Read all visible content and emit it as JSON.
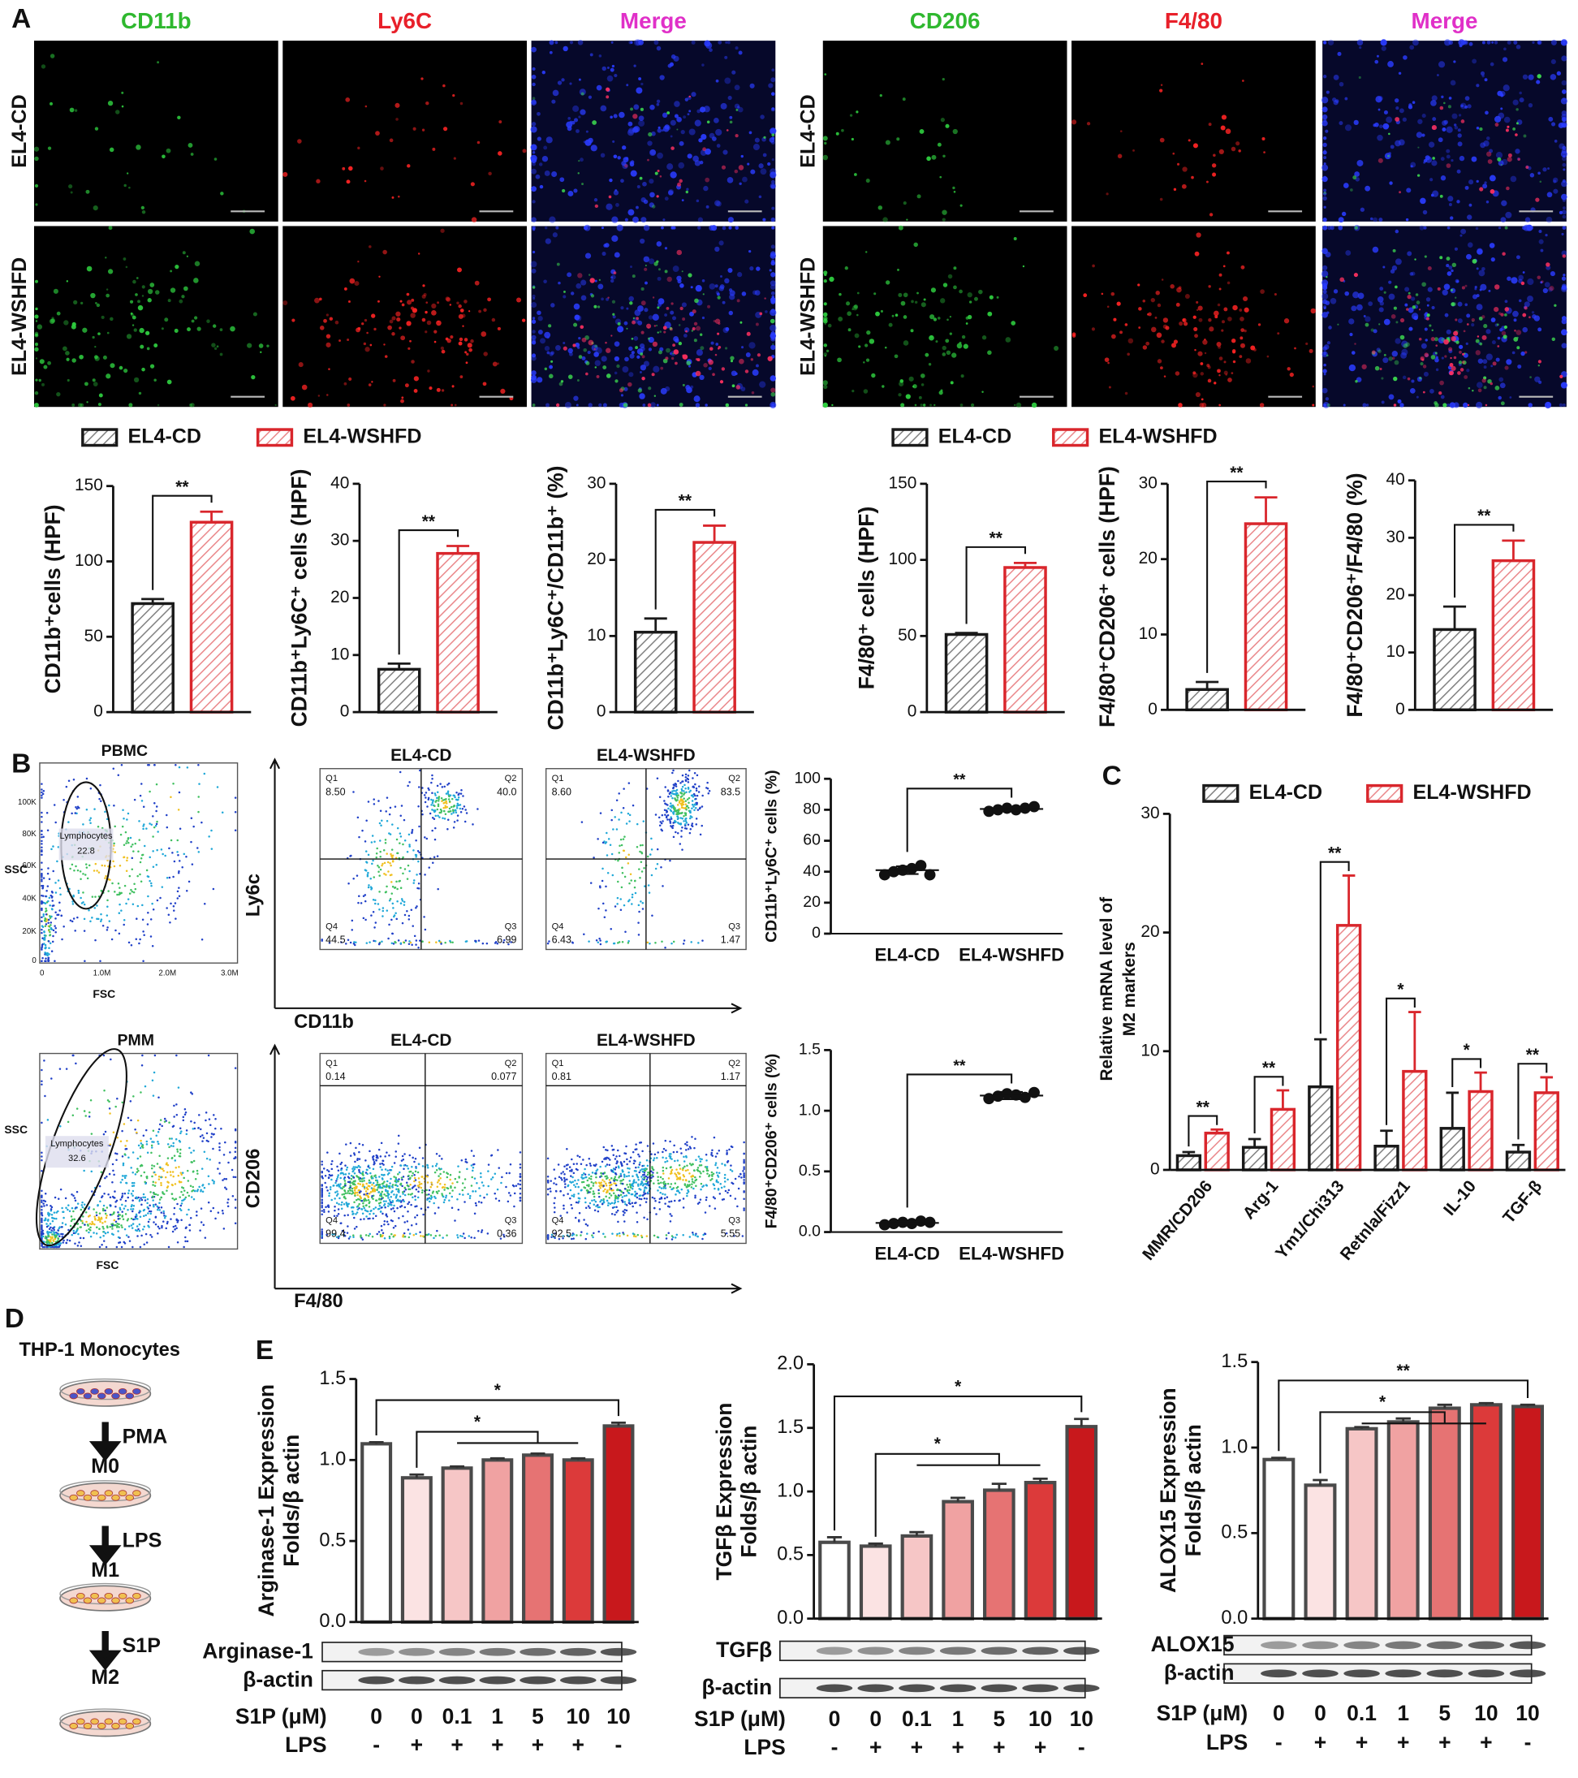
{
  "panel_labels": [
    "A",
    "B",
    "C",
    "D",
    "E"
  ],
  "microscopy": {
    "left": {
      "headers": [
        "CD11b",
        "Ly6C",
        "Merge"
      ],
      "rows": [
        "EL4-CD",
        "EL4-WSHFD"
      ]
    },
    "right": {
      "headers": [
        "CD206",
        "F4/80",
        "Merge"
      ],
      "rows": [
        "EL4-CD",
        "EL4-WSHFD"
      ]
    }
  },
  "flow": {
    "pbmc": {
      "title": "PBMC",
      "gate": "Lymphocytes",
      "gate_value": "22.8",
      "xlabel": "FSC",
      "ylabel": "SSC",
      "xticks": [
        "0",
        "1.0M",
        "2.0M",
        "3.0M"
      ],
      "yticks": [
        "100K",
        "80K",
        "60K",
        "40K",
        "20K",
        "0"
      ]
    },
    "pmm": {
      "title": "PMM",
      "gate": "Lymphocytes",
      "gate_value": "32.6",
      "xlabel": "FSC",
      "ylabel": "SSC"
    },
    "top_ylabel": "Ly6c",
    "top_xlabel": "CD11b",
    "bottom_ylabel": "CD206",
    "bottom_xlabel": "F4/80",
    "top_plots": [
      {
        "title": "EL4-CD",
        "quadrants": [
          [
            "Q1",
            "8.50"
          ],
          [
            "Q2",
            "40.0"
          ],
          [
            "Q3",
            "6.99"
          ],
          [
            "Q4",
            "44.5"
          ]
        ]
      },
      {
        "title": "EL4-WSHFD",
        "quadrants": [
          [
            "Q1",
            "8.60"
          ],
          [
            "Q2",
            "83.5"
          ],
          [
            "Q3",
            "1.47"
          ],
          [
            "Q4",
            "6.43"
          ]
        ]
      }
    ],
    "bottom_plots": [
      {
        "title": "EL4-CD",
        "quadrants": [
          [
            "Q1",
            "0.14"
          ],
          [
            "Q2",
            "0.077"
          ],
          [
            "Q3",
            "0.36"
          ],
          [
            "Q4",
            "99.4"
          ]
        ]
      },
      {
        "title": "EL4-WSHFD",
        "quadrants": [
          [
            "Q1",
            "0.81"
          ],
          [
            "Q2",
            "1.17"
          ],
          [
            "Q3",
            "5.55"
          ],
          [
            "Q4",
            "92.5"
          ]
        ]
      }
    ]
  },
  "diagram": {
    "title": "THP-1 Monocytes",
    "steps": [
      {
        "agent": "PMA",
        "state": "M0"
      },
      {
        "agent": "LPS",
        "state": "M1"
      },
      {
        "agent": "S1P",
        "state": "M2"
      }
    ]
  },
  "chart_data": [
    {
      "type": "bar",
      "ylabel": "CD11b⁺cells (HPF)",
      "ylim": [
        0,
        150
      ],
      "yticks": [
        0,
        50,
        100,
        150
      ],
      "hatch": true,
      "annotations": [
        "**"
      ],
      "series": [
        {
          "name": "EL4-CD",
          "color": "#1a1a1a",
          "values": [
            72
          ],
          "errors": [
            3
          ]
        },
        {
          "name": "EL4-WSHFD",
          "color": "#d9262c",
          "values": [
            126
          ],
          "errors": [
            7
          ]
        }
      ]
    },
    {
      "type": "bar",
      "ylabel": "CD11b⁺Ly6C⁺ cells (HPF)",
      "ylim": [
        0,
        40
      ],
      "yticks": [
        0,
        10,
        20,
        30,
        40
      ],
      "hatch": true,
      "annotations": [
        "**"
      ],
      "series": [
        {
          "color": "#1a1a1a",
          "values": [
            7.5
          ],
          "errors": [
            1
          ]
        },
        {
          "color": "#d9262c",
          "values": [
            27.8
          ],
          "errors": [
            1.3
          ]
        }
      ]
    },
    {
      "type": "bar",
      "ylabel": "CD11b⁺Ly6C⁺/CD11b⁺ (%)",
      "ylim": [
        0,
        30
      ],
      "yticks": [
        0,
        10,
        20,
        30
      ],
      "hatch": true,
      "annotations": [
        "**"
      ],
      "series": [
        {
          "color": "#1a1a1a",
          "values": [
            10.5
          ],
          "errors": [
            1.8
          ]
        },
        {
          "color": "#d9262c",
          "values": [
            22.3
          ],
          "errors": [
            2.2
          ]
        }
      ]
    },
    {
      "type": "bar",
      "ylabel": "F4/80⁺ cells (HPF)",
      "ylim": [
        0,
        150
      ],
      "yticks": [
        0,
        50,
        100,
        150
      ],
      "hatch": true,
      "annotations": [
        "**"
      ],
      "series": [
        {
          "name": "EL4-CD",
          "color": "#1a1a1a",
          "values": [
            51
          ],
          "errors": [
            1
          ]
        },
        {
          "name": "EL4-WSHFD",
          "color": "#d9262c",
          "values": [
            95
          ],
          "errors": [
            3
          ]
        }
      ]
    },
    {
      "type": "bar",
      "ylabel": "F4/80⁺CD206⁺ cells (HPF)",
      "ylim": [
        0,
        30
      ],
      "yticks": [
        0,
        10,
        20,
        30
      ],
      "hatch": true,
      "annotations": [
        "**"
      ],
      "series": [
        {
          "color": "#1a1a1a",
          "values": [
            2.7
          ],
          "errors": [
            1
          ]
        },
        {
          "color": "#d9262c",
          "values": [
            24.7
          ],
          "errors": [
            3.5
          ]
        }
      ]
    },
    {
      "type": "bar",
      "ylabel": "F4/80⁺CD206⁺/F4/80 (%)",
      "ylim": [
        0,
        40
      ],
      "yticks": [
        0,
        10,
        20,
        30,
        40
      ],
      "hatch": true,
      "annotations": [
        "**"
      ],
      "series": [
        {
          "color": "#1a1a1a",
          "values": [
            14
          ],
          "errors": [
            4
          ]
        },
        {
          "color": "#d9262c",
          "values": [
            26
          ],
          "errors": [
            3.5
          ]
        }
      ]
    },
    {
      "type": "dotplot",
      "ylabel": "CD11b⁺Ly6C⁺ cells (%)",
      "ylim": [
        0,
        100
      ],
      "yticks": [
        0,
        20,
        40,
        60,
        80,
        100
      ],
      "annotations": [
        "**"
      ],
      "categories": [
        "EL4-CD",
        "EL4-WSHFD"
      ],
      "points": [
        [
          38,
          40,
          41,
          42,
          44,
          38
        ],
        [
          79,
          80,
          81,
          80,
          81,
          82
        ]
      ],
      "means": [
        41,
        80.5
      ],
      "sds": [
        2.5,
        1
      ]
    },
    {
      "type": "dotplot",
      "ylabel": "F4/80⁺CD206⁺ cells (%)",
      "ylim": [
        0,
        1.5
      ],
      "yticks": [
        {
          "value": 0,
          "label": "0.0"
        },
        0.5,
        {
          "value": 1,
          "label": "1.0"
        },
        1.5
      ],
      "annotations": [
        "**"
      ],
      "categories": [
        "EL4-CD",
        "EL4-WSHFD"
      ],
      "points": [
        [
          0.06,
          0.07,
          0.08,
          0.07,
          0.09,
          0.08
        ],
        [
          1.1,
          1.12,
          1.14,
          1.13,
          1.11,
          1.15
        ]
      ],
      "means": [
        0.075,
        1.125
      ],
      "sds": [
        0.01,
        0.03
      ]
    },
    {
      "type": "bar",
      "ylabel": [
        "Relative mRNA level of",
        "M2 markers"
      ],
      "ylim": [
        0,
        30
      ],
      "yticks": [
        0,
        10,
        20,
        30
      ],
      "hatch": true,
      "annotations": [
        "**",
        "**",
        "**",
        "*",
        "*",
        "**"
      ],
      "categories": [
        "MMR/CD206",
        "Arg-1",
        "Ym1/Chi313",
        "Retnla/Fizz1",
        "IL-10",
        "TGF-β"
      ],
      "series": [
        {
          "name": "EL4-CD",
          "color": "#1a1a1a",
          "values": [
            1.2,
            1.9,
            7,
            2,
            3.5,
            1.5
          ],
          "errors": [
            0.3,
            0.7,
            4,
            1.3,
            3,
            0.6
          ]
        },
        {
          "name": "EL4-WSHFD",
          "color": "#d9262c",
          "values": [
            3.1,
            5.1,
            20.6,
            8.3,
            6.6,
            6.5
          ],
          "errors": [
            0.3,
            1.6,
            4.2,
            5,
            1.6,
            1.3
          ]
        }
      ]
    },
    {
      "type": "bar",
      "ylabel": [
        "Arginase-1 Expression",
        "Folds/β actin"
      ],
      "ylim": [
        0,
        1.5
      ],
      "yticks": [
        {
          "value": 0,
          "label": "0.0"
        },
        0.5,
        {
          "value": 1,
          "label": "1.0"
        },
        1.5
      ],
      "values": [
        1.1,
        0.89,
        0.95,
        1.0,
        1.03,
        1.0,
        1.21
      ],
      "errors": [
        0.01,
        0.02,
        0.01,
        0.01,
        0.01,
        0.01,
        0.02
      ],
      "colors": [
        "#ffffff",
        "#fbe3e3",
        "#f6c6c6",
        "#f0a2a2",
        "#e67373",
        "#dc3a3a",
        "#c8181c"
      ],
      "annotations": [
        "*",
        "*"
      ],
      "blots": [
        "Arginase-1",
        "β-actin"
      ],
      "category_title": "S1P (μM)",
      "categories": [
        "0",
        "0",
        "0.1",
        "1",
        "5",
        "10",
        "10"
      ],
      "lps_title": "LPS",
      "lps": [
        "-",
        "+",
        "+",
        "+",
        "+",
        "+",
        "-"
      ]
    },
    {
      "type": "bar",
      "ylabel": [
        "TGFβ Expression",
        "Folds/β actin"
      ],
      "ylim": [
        0,
        2
      ],
      "yticks": [
        {
          "value": 0,
          "label": "0.0"
        },
        0.5,
        {
          "value": 1,
          "label": "1.0"
        },
        1.5,
        {
          "value": 2,
          "label": "2.0"
        }
      ],
      "values": [
        0.6,
        0.57,
        0.65,
        0.92,
        1.01,
        1.07,
        1.51
      ],
      "errors": [
        0.04,
        0.02,
        0.03,
        0.03,
        0.05,
        0.03,
        0.06
      ],
      "colors": [
        "#ffffff",
        "#fbe3e3",
        "#f6c6c6",
        "#f0a2a2",
        "#e67373",
        "#dc3a3a",
        "#c8181c"
      ],
      "annotations": [
        "*",
        "*"
      ],
      "blots": [
        "TGFβ",
        "β-actin"
      ],
      "category_title": "S1P (μM)",
      "categories": [
        "0",
        "0",
        "0.1",
        "1",
        "5",
        "10",
        "10"
      ],
      "lps_title": "LPS",
      "lps": [
        "-",
        "+",
        "+",
        "+",
        "+",
        "+",
        "-"
      ]
    },
    {
      "type": "bar",
      "ylabel": [
        "ALOX15 Expression",
        "Folds/β actin"
      ],
      "ylim": [
        0,
        1.5
      ],
      "yticks": [
        {
          "value": 0,
          "label": "0.0"
        },
        0.5,
        {
          "value": 1,
          "label": "1.0"
        },
        1.5
      ],
      "values": [
        0.93,
        0.78,
        1.11,
        1.15,
        1.23,
        1.25,
        1.24
      ],
      "errors": [
        0.01,
        0.03,
        0.01,
        0.02,
        0.02,
        0.01,
        0.01
      ],
      "colors": [
        "#ffffff",
        "#fbe3e3",
        "#f6c6c6",
        "#f0a2a2",
        "#e67373",
        "#dc3a3a",
        "#c8181c"
      ],
      "annotations": [
        "**",
        "*"
      ],
      "blots": [
        "ALOX15",
        "β-actin"
      ],
      "category_title": "S1P (μM)",
      "categories": [
        "0",
        "0",
        "0.1",
        "1",
        "5",
        "10",
        "10"
      ],
      "lps_title": "LPS",
      "lps": [
        "-",
        "+",
        "+",
        "+",
        "+",
        "+",
        "-"
      ]
    }
  ]
}
